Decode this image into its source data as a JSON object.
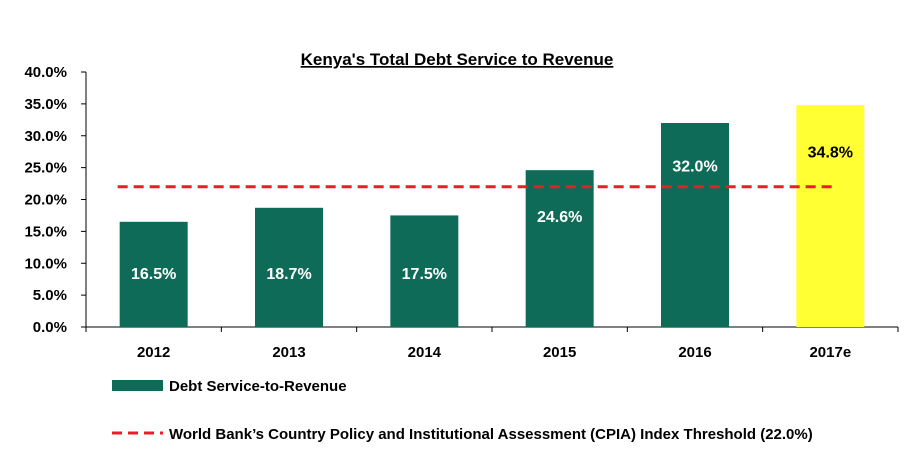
{
  "chart_data": {
    "type": "bar",
    "title": "Kenya's Total Debt Service to Revenue",
    "categories": [
      "2012",
      "2013",
      "2014",
      "2015",
      "2016",
      "2017e"
    ],
    "series": [
      {
        "name": "Debt Service-to-Revenue",
        "values": [
          16.5,
          18.7,
          17.5,
          24.6,
          32.0,
          34.8
        ],
        "data_labels": [
          "16.5%",
          "18.7%",
          "17.5%",
          "24.6%",
          "32.0%",
          "34.8%"
        ],
        "colors": [
          "#0d6b58",
          "#0d6b58",
          "#0d6b58",
          "#0d6b58",
          "#0d6b58",
          "#ffff33"
        ],
        "label_colors": [
          "#ffffff",
          "#ffffff",
          "#ffffff",
          "#ffffff",
          "#ffffff",
          "#000000"
        ]
      }
    ],
    "threshold": {
      "name": "World Bank’s Country Policy and Institutional Assessment (CPIA) Index Threshold (22.0%)",
      "value": 22.0,
      "color": "#ee1c25",
      "style": "dashed"
    },
    "ylim": [
      0,
      40
    ],
    "yticks": [
      0,
      5,
      10,
      15,
      20,
      25,
      30,
      35,
      40
    ],
    "ytick_labels": [
      "0.0%",
      "5.0%",
      "10.0%",
      "15.0%",
      "20.0%",
      "25.0%",
      "30.0%",
      "35.0%",
      "40.0%"
    ],
    "xlabel": "",
    "ylabel": "",
    "grid": false,
    "legend_position": "bottom"
  }
}
